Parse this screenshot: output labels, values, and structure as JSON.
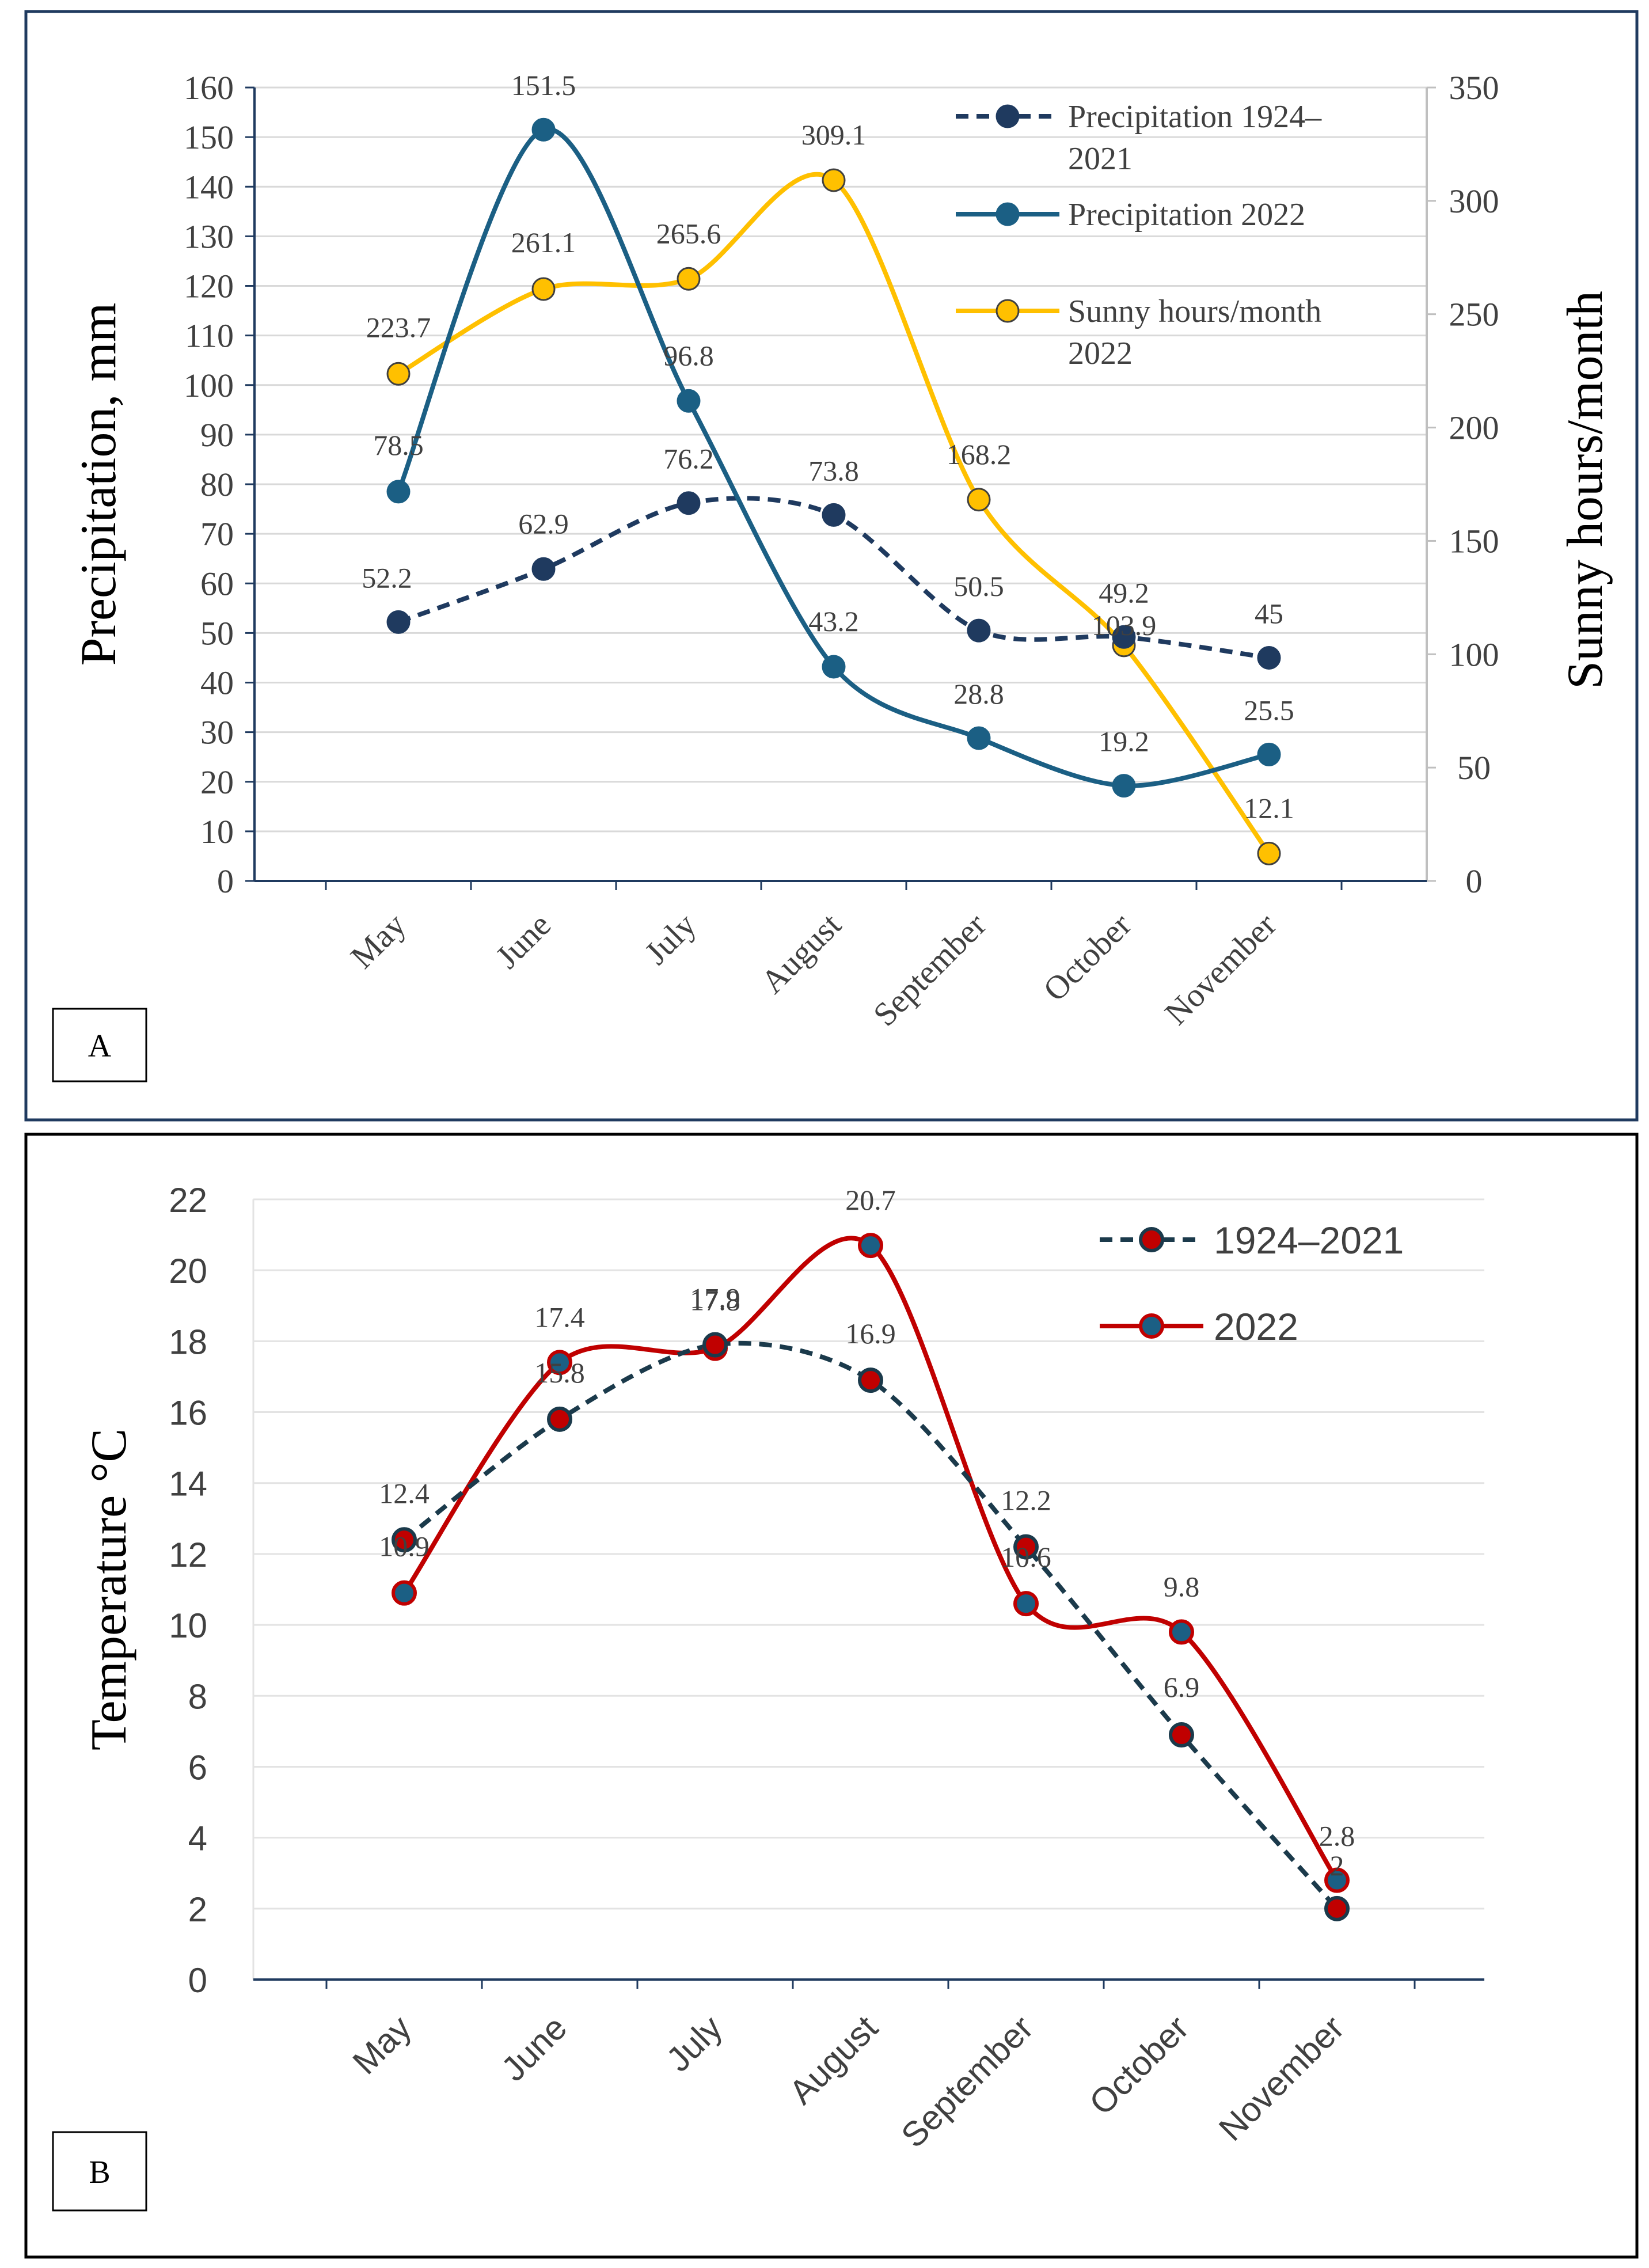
{
  "chart_data": [
    {
      "panel": "A",
      "type": "line",
      "categories": [
        "May",
        "June",
        "July",
        "August",
        "September",
        "October",
        "November"
      ],
      "ylabel": "Precipitation, mm",
      "y2label": "Sunny hours/month",
      "ylim": [
        0,
        160
      ],
      "y2lim": [
        0,
        350
      ],
      "yticks": [
        "0",
        "10",
        "20",
        "30",
        "40",
        "50",
        "60",
        "70",
        "80",
        "90",
        "100",
        "110",
        "120",
        "130",
        "140",
        "150",
        "160"
      ],
      "y2ticks": [
        "0",
        "50",
        "100",
        "150",
        "200",
        "250",
        "300",
        "350"
      ],
      "legend_position": "top-right",
      "series": [
        {
          "name": "Precipitation 1924–2021",
          "legend_line1": "Precipitation 1924–",
          "legend_line2": "2021",
          "axis": "left",
          "style": "dashed",
          "color": "#1F3A5F",
          "values": [
            52.2,
            62.9,
            76.2,
            73.8,
            50.5,
            49.2,
            45
          ],
          "labels": [
            "52.2",
            "62.9",
            "76.2",
            "73.8",
            "50.5",
            "49.2",
            "45"
          ]
        },
        {
          "name": "Precipitation 2022",
          "legend_line1": "Precipitation 2022",
          "legend_line2": "",
          "axis": "left",
          "style": "solid",
          "color": "#1B5F84",
          "values": [
            78.5,
            151.5,
            96.8,
            43.2,
            28.8,
            19.2,
            25.5
          ],
          "labels": [
            "78.5",
            "151.5",
            "96.8",
            "43.2",
            "28.8",
            "19.2",
            "25.5"
          ]
        },
        {
          "name": "Sunny hours/month 2022",
          "legend_line1": "Sunny hours/month",
          "legend_line2": "2022",
          "axis": "right",
          "style": "solid",
          "color": "#FFC000",
          "values": [
            223.7,
            261.1,
            265.6,
            309.1,
            168.2,
            103.9,
            12.1
          ],
          "labels": [
            "223.7",
            "261.1",
            "265.6",
            "309.1",
            "168.2",
            "103.9",
            "12.1"
          ]
        }
      ]
    },
    {
      "panel": "B",
      "type": "line",
      "categories": [
        "May",
        "June",
        "July",
        "August",
        "September",
        "October",
        "November"
      ],
      "ylabel": "Temperature °C",
      "ylim": [
        0,
        22
      ],
      "yticks": [
        "0",
        "2",
        "4",
        "6",
        "8",
        "10",
        "12",
        "14",
        "16",
        "18",
        "20",
        "22"
      ],
      "legend_position": "top-right",
      "series": [
        {
          "name": "1924–2021",
          "style": "dashed",
          "color": "#1B3A4B",
          "marker_fill": "#C00000",
          "values": [
            12.4,
            15.8,
            17.9,
            16.9,
            12.2,
            6.9,
            2
          ],
          "labels": [
            "12.4",
            "15.8",
            "17.9",
            "16.9",
            "12.2",
            "6.9",
            "2"
          ]
        },
        {
          "name": "2022",
          "style": "solid",
          "color": "#C00000",
          "marker_fill": "#1B5F84",
          "values": [
            10.9,
            17.4,
            17.8,
            20.7,
            10.6,
            9.8,
            2.8
          ],
          "labels": [
            "10.9",
            "17.4",
            "17.8",
            "20.7",
            "10.6",
            "9.8",
            "2.8"
          ]
        }
      ]
    }
  ]
}
